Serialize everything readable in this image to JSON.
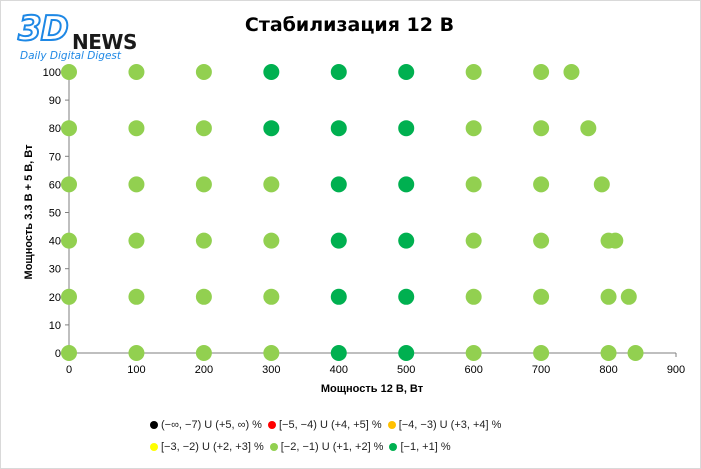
{
  "logo": {
    "brand": "3D",
    "news": "NEWS",
    "tagline": "Daily Digital Digest"
  },
  "colors": {
    "bg": "#ffffff",
    "axis": "#7f7f7f",
    "light_green": "#92d050",
    "dark_green": "#00b050"
  },
  "chart_data": {
    "type": "scatter",
    "title": "Стабилизация 12 В",
    "xlabel": "Мощность  12 В, Вт",
    "ylabel": "Мощность  3.3 В + 5 В, Вт",
    "xlim": [
      0,
      900
    ],
    "ylim": [
      0,
      100
    ],
    "xticks": [
      0,
      100,
      200,
      300,
      400,
      500,
      600,
      700,
      800,
      900
    ],
    "yticks": [
      0,
      10,
      20,
      30,
      40,
      50,
      60,
      70,
      80,
      90,
      100
    ],
    "grid": false,
    "legend_placement": "bottom",
    "legend": [
      {
        "label": "(−∞, −7) U (+5, ∞) %",
        "color": "#000000"
      },
      {
        "label": "[−5, −4) U (+4, +5] %",
        "color": "#ff0000"
      },
      {
        "label": "[−4, −3) U (+3, +4] %",
        "color": "#ffc000"
      },
      {
        "label": "[−3, −2) U (+2, +3] %",
        "color": "#ffff00"
      },
      {
        "label": "[−2, −1) U (+1, +2] %",
        "color": "#92d050"
      },
      {
        "label": "[−1, +1] %",
        "color": "#00b050"
      }
    ],
    "series": [
      {
        "name": "[−2, −1) U (+1, +2] %",
        "color": "#92d050",
        "points": [
          [
            0,
            0
          ],
          [
            100,
            0
          ],
          [
            200,
            0
          ],
          [
            300,
            0
          ],
          [
            600,
            0
          ],
          [
            700,
            0
          ],
          [
            800,
            0
          ],
          [
            840,
            0
          ],
          [
            0,
            20
          ],
          [
            100,
            20
          ],
          [
            200,
            20
          ],
          [
            300,
            20
          ],
          [
            600,
            20
          ],
          [
            700,
            20
          ],
          [
            800,
            20
          ],
          [
            830,
            20
          ],
          [
            0,
            40
          ],
          [
            100,
            40
          ],
          [
            200,
            40
          ],
          [
            300,
            40
          ],
          [
            600,
            40
          ],
          [
            700,
            40
          ],
          [
            800,
            40
          ],
          [
            810,
            40
          ],
          [
            0,
            60
          ],
          [
            100,
            60
          ],
          [
            200,
            60
          ],
          [
            300,
            60
          ],
          [
            600,
            60
          ],
          [
            700,
            60
          ],
          [
            790,
            60
          ],
          [
            0,
            80
          ],
          [
            100,
            80
          ],
          [
            200,
            80
          ],
          [
            600,
            80
          ],
          [
            700,
            80
          ],
          [
            770,
            80
          ],
          [
            0,
            100
          ],
          [
            100,
            100
          ],
          [
            200,
            100
          ],
          [
            600,
            100
          ],
          [
            700,
            100
          ],
          [
            745,
            100
          ]
        ]
      },
      {
        "name": "[−1, +1] %",
        "color": "#00b050",
        "points": [
          [
            400,
            0
          ],
          [
            500,
            0
          ],
          [
            400,
            20
          ],
          [
            500,
            20
          ],
          [
            400,
            40
          ],
          [
            500,
            40
          ],
          [
            400,
            60
          ],
          [
            500,
            60
          ],
          [
            300,
            80
          ],
          [
            400,
            80
          ],
          [
            500,
            80
          ],
          [
            300,
            100
          ],
          [
            400,
            100
          ],
          [
            500,
            100
          ]
        ]
      }
    ]
  }
}
